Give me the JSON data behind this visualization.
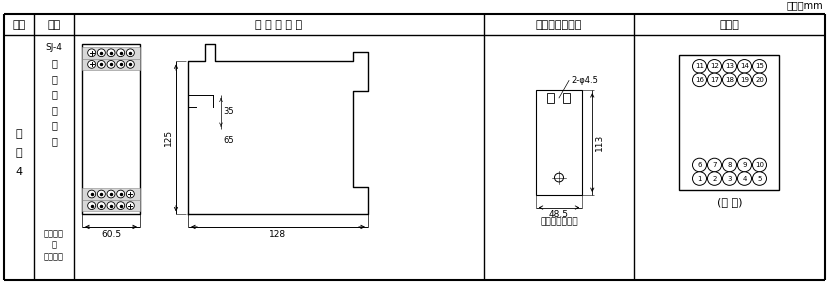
{
  "title_unit": "单位：mm",
  "col_h0": "图号",
  "col_h1": "结构",
  "col_h2": "外 形 尺 寸 图",
  "col_h3": "安装开孔尺寸图",
  "col_h4": "端子图",
  "left_chars": [
    "附",
    "图",
    "4"
  ],
  "struct_chars": [
    "SJ-4",
    "凸",
    "出",
    "式",
    "前",
    "接",
    "线"
  ],
  "struct_bottom": [
    "卡轨安装",
    "或",
    "谺钉安装"
  ],
  "dim_60_5": "60.5",
  "dim_128": "128",
  "dim_125": "125",
  "dim_35": "35",
  "dim_65": "65",
  "dim_113": "113",
  "dim_48_5": "48.5",
  "dim_hole": "2-φ4.5",
  "label_screw": "谺钉安装开孔图",
  "label_front": "(正 视)",
  "top_row_nums": [
    11,
    12,
    13,
    14,
    15
  ],
  "second_row_nums": [
    16,
    17,
    18,
    19,
    20
  ],
  "third_row_nums": [
    6,
    7,
    8,
    9,
    10
  ],
  "bottom_row_nums": [
    1,
    2,
    3,
    4,
    5
  ],
  "line_color": "#000000",
  "bg_color": "#ffffff"
}
